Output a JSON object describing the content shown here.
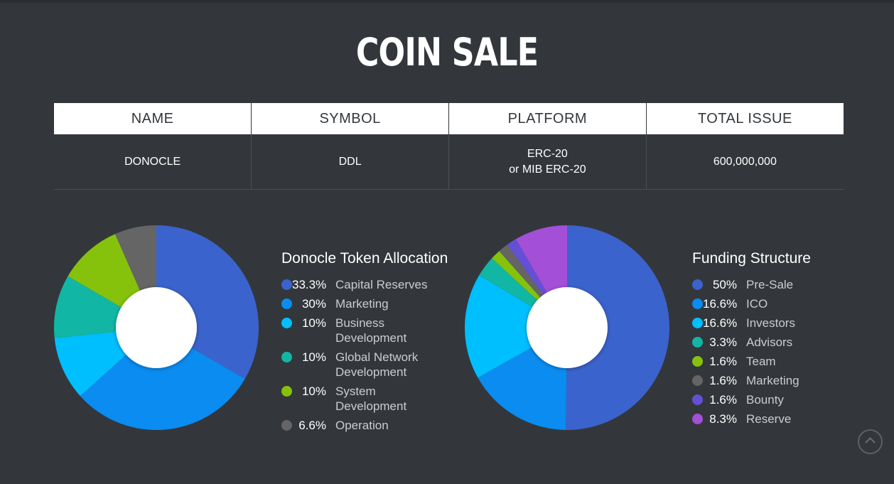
{
  "page": {
    "title": "COIN SALE"
  },
  "table": {
    "headers": [
      "NAME",
      "SYMBOL",
      "PLATFORM",
      "TOTAL ISSUE"
    ],
    "row": {
      "name": "DONOCLE",
      "symbol": "DDL",
      "platform_line1": "ERC-20",
      "platform_line2": "or MIB ERC-20",
      "total_issue": "600,000,000"
    }
  },
  "chart_data": [
    {
      "type": "pie",
      "title": "Donocle Token Allocation",
      "categories": [
        "Capital Reserves",
        "Marketing",
        "Business Development",
        "Global Network Development",
        "System Development",
        "Operation"
      ],
      "label_lines": [
        [
          "Capital Reserves"
        ],
        [
          "Marketing"
        ],
        [
          "Business",
          "Development"
        ],
        [
          "Global Network",
          "Development"
        ],
        [
          "System",
          "Development"
        ],
        [
          "Operation"
        ]
      ],
      "values": [
        33.3,
        30,
        10,
        10,
        10,
        6.6
      ],
      "value_labels": [
        "33.3%",
        "30%",
        "10%",
        "10%",
        "10%",
        "6.6%"
      ],
      "colors": [
        "#3b63cd",
        "#0a8cf0",
        "#00bfff",
        "#12b6a4",
        "#86c20c",
        "#656566"
      ]
    },
    {
      "type": "pie",
      "title": "Funding Structure",
      "categories": [
        "Pre-Sale",
        "ICO",
        "Investors",
        "Advisors",
        "Team",
        "Marketing",
        "Bounty",
        "Reserve"
      ],
      "label_lines": [
        [
          "Pre-Sale"
        ],
        [
          "ICO"
        ],
        [
          "Investors"
        ],
        [
          "Advisors"
        ],
        [
          "Team"
        ],
        [
          "Marketing"
        ],
        [
          "Bounty"
        ],
        [
          "Reserve"
        ]
      ],
      "values": [
        50,
        16.6,
        16.6,
        3.3,
        1.6,
        1.6,
        1.6,
        8.3
      ],
      "value_labels": [
        "50%",
        "16.6%",
        "16.6%",
        "3.3%",
        "1.6%",
        "1.6%",
        "1.6%",
        "8.3%"
      ],
      "colors": [
        "#3b63cd",
        "#0a8cf0",
        "#00bfff",
        "#12b6a4",
        "#86c20c",
        "#656566",
        "#6450d6",
        "#a34fd8"
      ]
    }
  ],
  "icons": {
    "scroll_top": "chevron-up-icon"
  }
}
